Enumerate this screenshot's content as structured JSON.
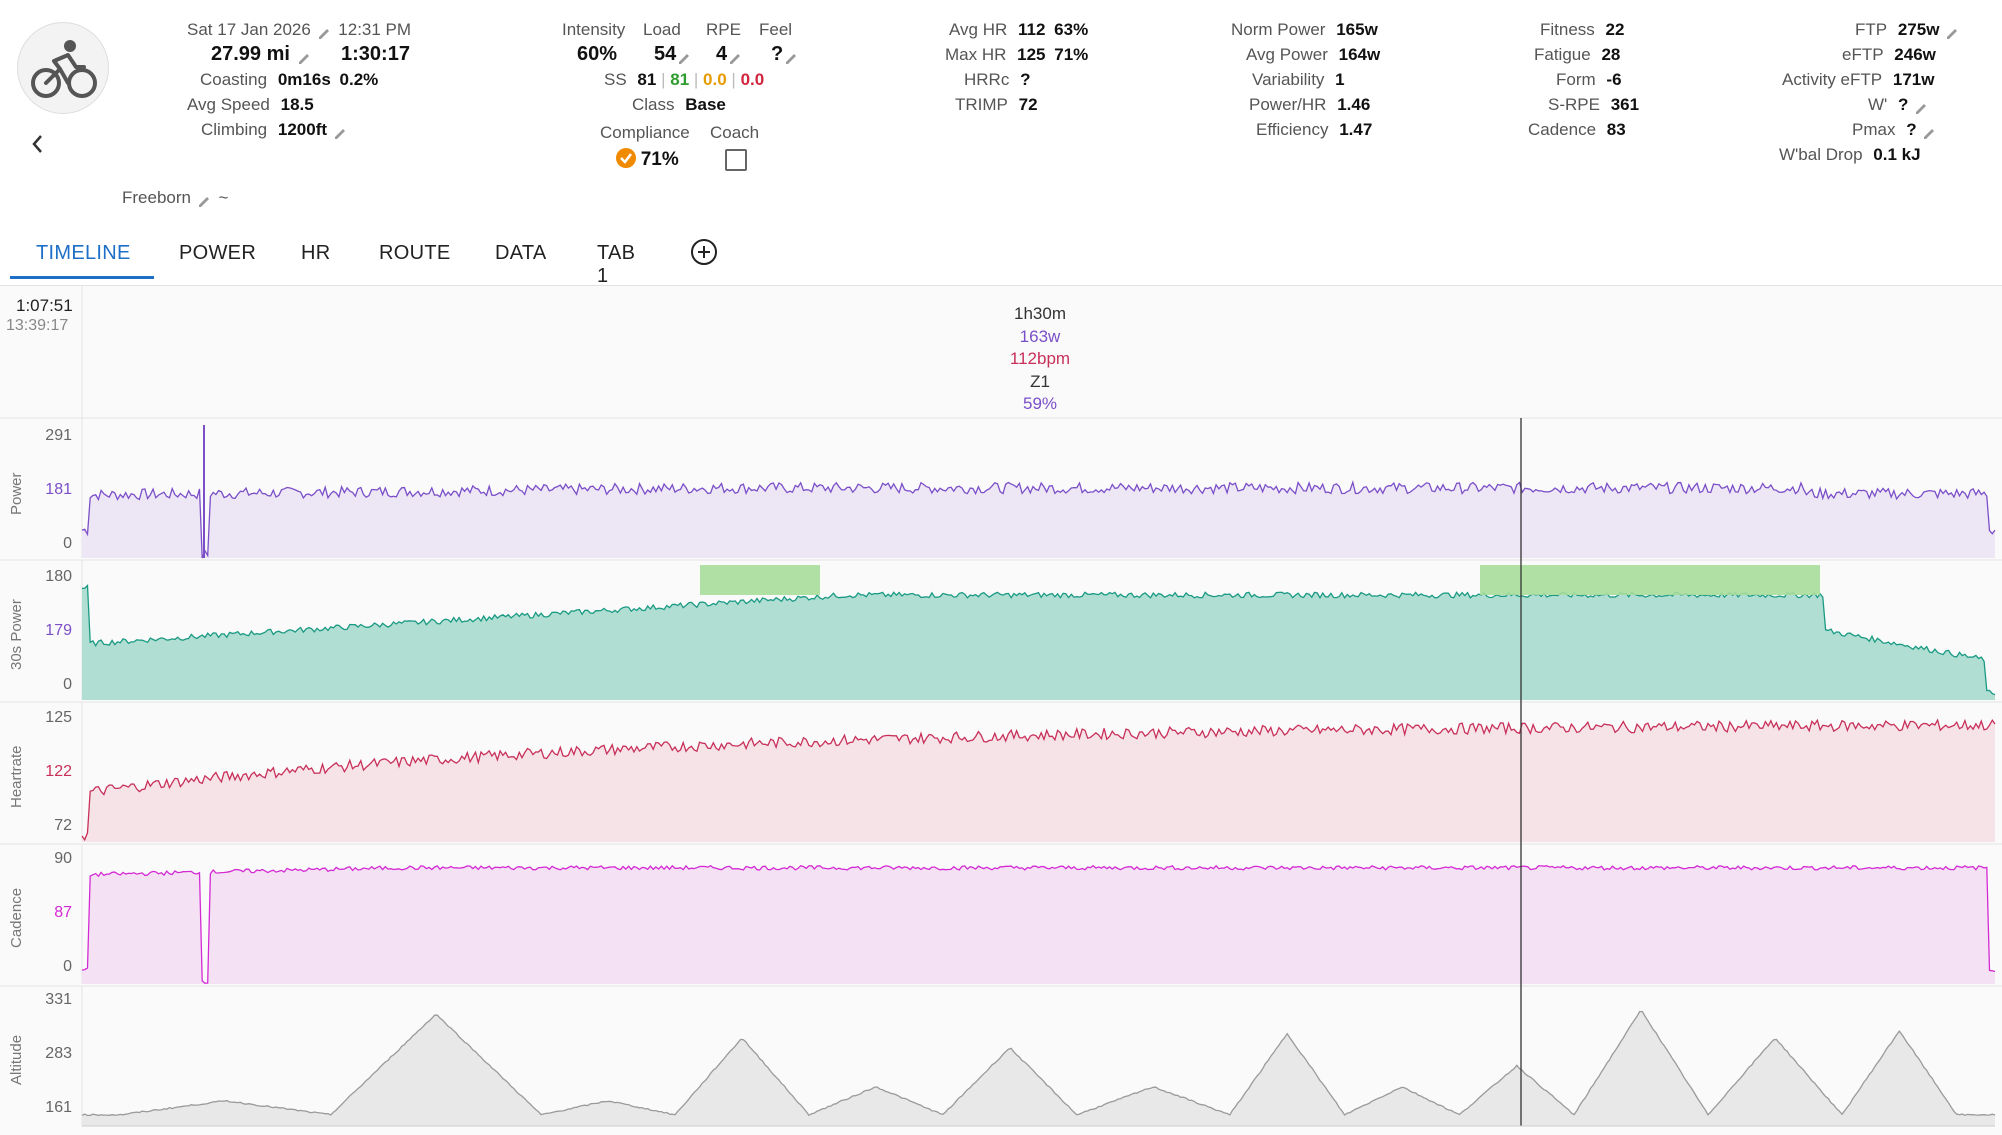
{
  "header": {
    "date": "Sat 17 Jan 2026",
    "time": "12:31 PM",
    "distance": "27.99 mi",
    "duration": "1:30:17",
    "coasting_label": "Coasting",
    "coasting_value": "0m16s",
    "coasting_pct": "0.2%",
    "avg_speed_label": "Avg Speed",
    "avg_speed_value": "18.5",
    "climbing_label": "Climbing",
    "climbing_value": "1200ft",
    "location": "Freeborn",
    "location_suffix": "~"
  },
  "metrics_mid": {
    "intensity_label": "Intensity",
    "intensity_value": "60%",
    "load_label": "Load",
    "load_value": "54",
    "rpe_label": "RPE",
    "rpe_value": "4",
    "feel_label": "Feel",
    "feel_value": "?",
    "ss_label": "SS",
    "ss_v1": "81",
    "ss_v2": "81",
    "ss_v3": "0.0",
    "ss_v4": "0.0",
    "class_label": "Class",
    "class_value": "Base",
    "compliance_label": "Compliance",
    "compliance_value": "71%",
    "coach_label": "Coach"
  },
  "hr_block": {
    "avg_hr_label": "Avg HR",
    "avg_hr_value": "112",
    "avg_hr_pct": "63%",
    "max_hr_label": "Max HR",
    "max_hr_value": "125",
    "max_hr_pct": "71%",
    "hrrc_label": "HRRc",
    "hrrc_value": "?",
    "trimp_label": "TRIMP",
    "trimp_value": "72"
  },
  "power_block": {
    "norm_power_label": "Norm Power",
    "norm_power_value": "165w",
    "avg_power_label": "Avg Power",
    "avg_power_value": "164w",
    "variability_label": "Variability",
    "variability_value": "1",
    "power_hr_label": "Power/HR",
    "power_hr_value": "1.46",
    "efficiency_label": "Efficiency",
    "efficiency_value": "1.47"
  },
  "fitness_block": {
    "fitness_label": "Fitness",
    "fitness_value": "22",
    "fatigue_label": "Fatigue",
    "fatigue_value": "28",
    "form_label": "Form",
    "form_value": "-6",
    "srpe_label": "S-RPE",
    "srpe_value": "361",
    "cadence_label": "Cadence",
    "cadence_value": "83"
  },
  "ftp_block": {
    "ftp_label": "FTP",
    "ftp_value": "275w",
    "eftp_label": "eFTP",
    "eftp_value": "246w",
    "activity_eftp_label": "Activity eFTP",
    "activity_eftp_value": "171w",
    "wprime_label": "W'",
    "wprime_value": "?",
    "pmax_label": "Pmax",
    "pmax_value": "?",
    "wbal_label": "W'bal Drop",
    "wbal_value": "0.1 kJ"
  },
  "tabs": [
    "TIMELINE",
    "POWER",
    "HR",
    "ROUTE",
    "DATA",
    "TAB 1"
  ],
  "cursor": {
    "elapsed": "1:07:51",
    "clock": "13:39:17"
  },
  "summary": {
    "duration": "1h30m",
    "power": "163w",
    "hr": "112bpm",
    "zone": "Z1",
    "pct": "59%"
  },
  "colors": {
    "power": "#7b4fc8",
    "power_fill": "#ece6f5",
    "power30": "#1a9a83",
    "power30_fill": "#b0ded2",
    "power30_above": "#2e9e2e",
    "power30_above_fill": "#a9dd9b",
    "hr": "#c8305a",
    "hr_fill": "#f5e3e8",
    "cadence": "#d42ad4",
    "cadence_fill": "#f4e2f4",
    "altitude": "#9a9a9a",
    "altitude_fill": "#e8e8e8",
    "accent": "#1e6fc7",
    "compliance": "#f08a00"
  },
  "chart_data": [
    {
      "type": "line",
      "ylabel": "Power",
      "yticks": [
        "291",
        "181",
        "0"
      ],
      "duration_min": 90
    },
    {
      "type": "area",
      "ylabel": "30s Power",
      "yticks": [
        "180",
        "179",
        "0"
      ]
    },
    {
      "type": "line",
      "ylabel": "Heartrate",
      "yticks": [
        "125",
        "122",
        "72"
      ]
    },
    {
      "type": "line",
      "ylabel": "Cadence",
      "yticks": [
        "90",
        "87",
        "0"
      ]
    },
    {
      "type": "area",
      "ylabel": "Altitude",
      "yticks": [
        "331",
        "283",
        "161"
      ]
    }
  ]
}
